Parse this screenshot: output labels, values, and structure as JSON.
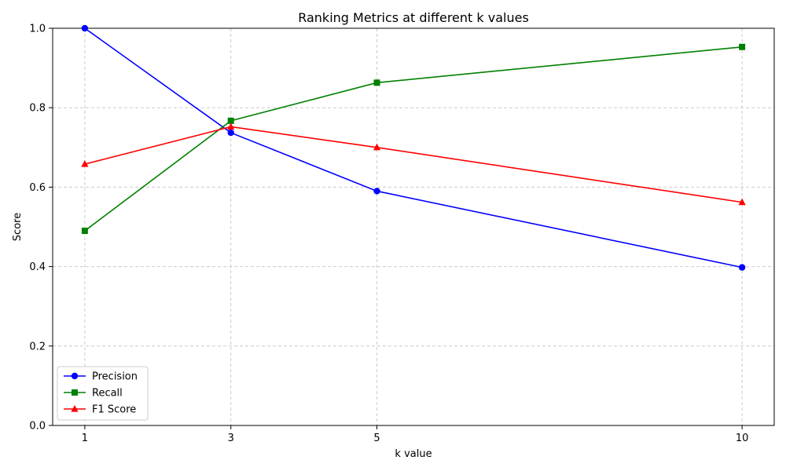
{
  "chart_data": {
    "type": "line",
    "title": "Ranking Metrics at different k values",
    "xlabel": "k value",
    "ylabel": "Score",
    "x": [
      1,
      3,
      5,
      10
    ],
    "xlim": [
      0.56,
      10.44
    ],
    "ylim": [
      0.0,
      1.0
    ],
    "yticks": [
      0.0,
      0.2,
      0.4,
      0.6,
      0.8,
      1.0
    ],
    "ytick_labels": [
      "0.0",
      "0.2",
      "0.4",
      "0.6",
      "0.8",
      "1.0"
    ],
    "xtick_labels": [
      "1",
      "3",
      "5",
      "10"
    ],
    "grid": true,
    "legend_position": "lower-left",
    "series": [
      {
        "name": "Precision",
        "values": [
          1.0,
          0.737,
          0.59,
          0.398
        ],
        "color": "#0000ff",
        "marker": "circle"
      },
      {
        "name": "Recall",
        "values": [
          0.49,
          0.767,
          0.863,
          0.953
        ],
        "color": "#008000",
        "marker": "square"
      },
      {
        "name": "F1 Score",
        "values": [
          0.658,
          0.752,
          0.7,
          0.562
        ],
        "color": "#ff0000",
        "marker": "triangle"
      }
    ]
  }
}
